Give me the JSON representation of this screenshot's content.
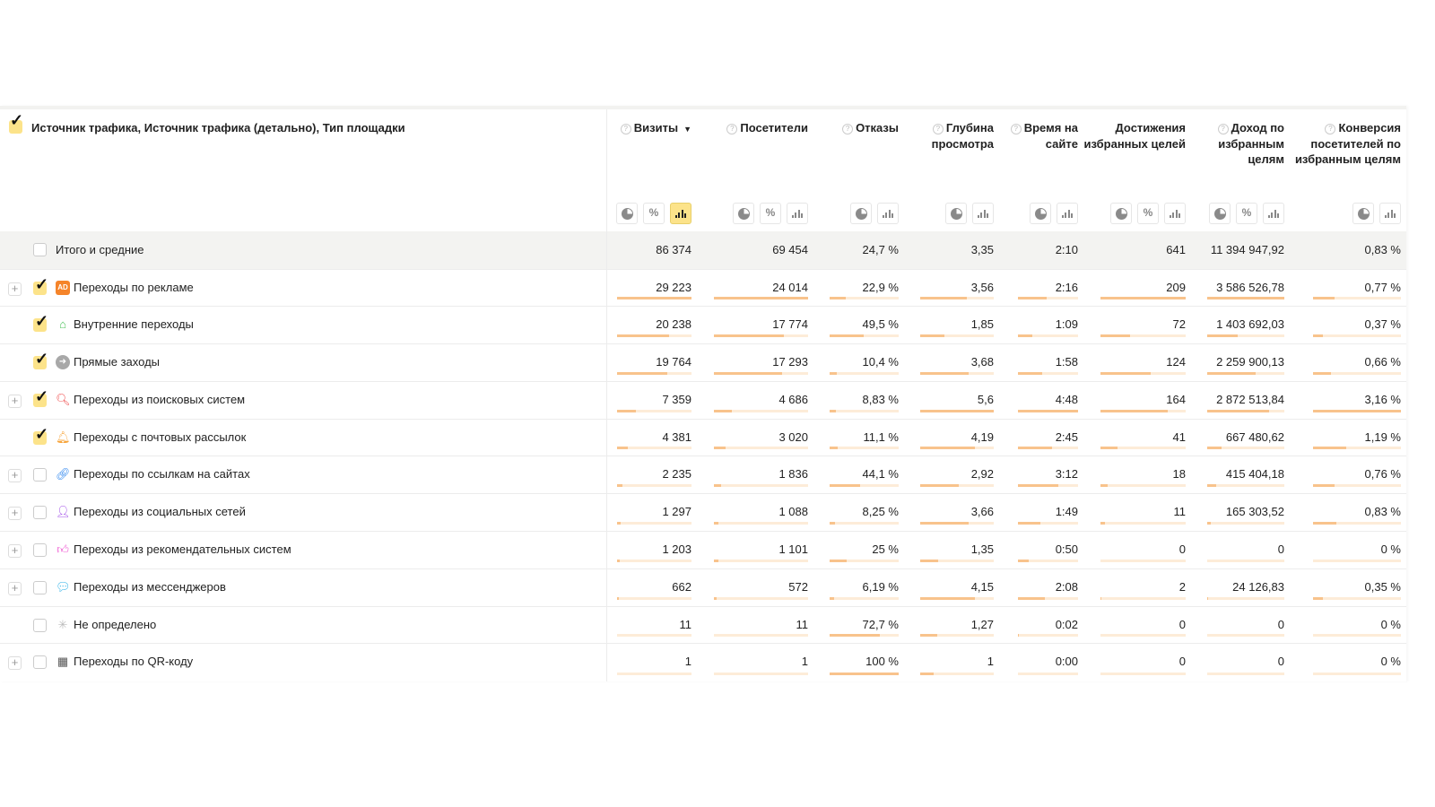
{
  "header": {
    "dimension_title": "Источник трафика, Источник трафика (детально), Тип площадки",
    "columns": [
      {
        "label": "Визиты",
        "help": true,
        "sorted": true,
        "buttons": [
          "pie",
          "percent",
          "bars-active"
        ]
      },
      {
        "label": "Посетители",
        "help": true,
        "buttons": [
          "pie",
          "percent",
          "bars"
        ]
      },
      {
        "label": "Отказы",
        "help": true,
        "buttons": [
          "pie",
          "bars"
        ]
      },
      {
        "label": "Глубина просмотра",
        "help": true,
        "buttons": [
          "pie",
          "bars"
        ]
      },
      {
        "label": "Время на сайте",
        "help": true,
        "buttons": [
          "pie",
          "bars"
        ]
      },
      {
        "label": "Достижения избранных целей",
        "help": false,
        "buttons": [
          "pie",
          "percent",
          "bars"
        ]
      },
      {
        "label": "Доход по избранным целям",
        "help": true,
        "buttons": [
          "pie",
          "percent",
          "bars"
        ]
      },
      {
        "label": "Конверсия посетителей по избранным целям",
        "help": true,
        "buttons": [
          "pie",
          "bars"
        ]
      }
    ],
    "sort_indicator": "▼",
    "help_glyph": "?",
    "percent_glyph": "%"
  },
  "total": {
    "label": "Итого и средние",
    "values": [
      "86 374",
      "69 454",
      "24,7 %",
      "3,35",
      "2:10",
      "641",
      "11 394 947,92",
      "0,83 %"
    ]
  },
  "colors": {
    "accent": "#fce38a",
    "bar_fill": "#f8c38c",
    "bar_track": "#fdecd8"
  },
  "rows": [
    {
      "label": "Переходы по рекламе",
      "expandable": true,
      "checked": true,
      "icon": "ad-icon",
      "icon_color": "#f5842a",
      "values": [
        "29 223",
        "24 014",
        "22,9 %",
        "3,56",
        "2:16",
        "209",
        "3 586 526,78",
        "0,77 %"
      ]
    },
    {
      "label": "Внутренние переходы",
      "expandable": false,
      "checked": true,
      "icon": "home-icon",
      "icon_color": "#4cc35b",
      "values": [
        "20 238",
        "17 774",
        "49,5 %",
        "1,85",
        "1:09",
        "72",
        "1 403 692,03",
        "0,37 %"
      ]
    },
    {
      "label": "Прямые заходы",
      "expandable": false,
      "checked": true,
      "icon": "arrow-in-icon",
      "icon_color": "#a8a8a8",
      "values": [
        "19 764",
        "17 293",
        "10,4 %",
        "3,68",
        "1:58",
        "124",
        "2 259 900,13",
        "0,66 %"
      ]
    },
    {
      "label": "Переходы из поисковых систем",
      "expandable": true,
      "checked": true,
      "icon": "search-icon",
      "icon_color": "#ef4b4b",
      "values": [
        "7 359",
        "4 686",
        "8,83 %",
        "5,6",
        "4:48",
        "164",
        "2 872 513,84",
        "3,16 %"
      ]
    },
    {
      "label": "Переходы с почтовых рассылок",
      "expandable": false,
      "checked": true,
      "icon": "bell-icon",
      "icon_color": "#f7a43a",
      "values": [
        "4 381",
        "3 020",
        "11,1 %",
        "4,19",
        "2:45",
        "41",
        "667 480,62",
        "1,19 %"
      ]
    },
    {
      "label": "Переходы по ссылкам на сайтах",
      "expandable": true,
      "checked": false,
      "icon": "link-icon",
      "icon_color": "#3d8ff0",
      "values": [
        "2 235",
        "1 836",
        "44,1 %",
        "2,92",
        "3:12",
        "18",
        "415 404,18",
        "0,76 %"
      ]
    },
    {
      "label": "Переходы из социальных сетей",
      "expandable": true,
      "checked": false,
      "icon": "user-icon",
      "icon_color": "#a14ee8",
      "values": [
        "1 297",
        "1 088",
        "8,25 %",
        "3,66",
        "1:49",
        "11",
        "165 303,52",
        "0,83 %"
      ]
    },
    {
      "label": "Переходы из рекомендательных систем",
      "expandable": true,
      "checked": false,
      "icon": "thumbs-up-icon",
      "icon_color": "#ee4fcf",
      "values": [
        "1 203",
        "1 101",
        "25 %",
        "1,35",
        "0:50",
        "0",
        "0",
        "0 %"
      ]
    },
    {
      "label": "Переходы из мессенджеров",
      "expandable": true,
      "checked": false,
      "icon": "chat-bubble-icon",
      "icon_color": "#34b4e8",
      "values": [
        "662",
        "572",
        "6,19 %",
        "4,15",
        "2:08",
        "2",
        "24 126,83",
        "0,35 %"
      ]
    },
    {
      "label": "Не определено",
      "expandable": false,
      "checked": false,
      "icon": "spinner-icon",
      "icon_color": "#bbbbbb",
      "values": [
        "11",
        "11",
        "72,7 %",
        "1,27",
        "0:02",
        "0",
        "0",
        "0 %"
      ]
    },
    {
      "label": "Переходы по QR-коду",
      "expandable": true,
      "checked": false,
      "icon": "qr-code-icon",
      "icon_color": "#555555",
      "values": [
        "1",
        "1",
        "100 %",
        "1",
        "0:00",
        "0",
        "0",
        "0 %"
      ]
    }
  ]
}
